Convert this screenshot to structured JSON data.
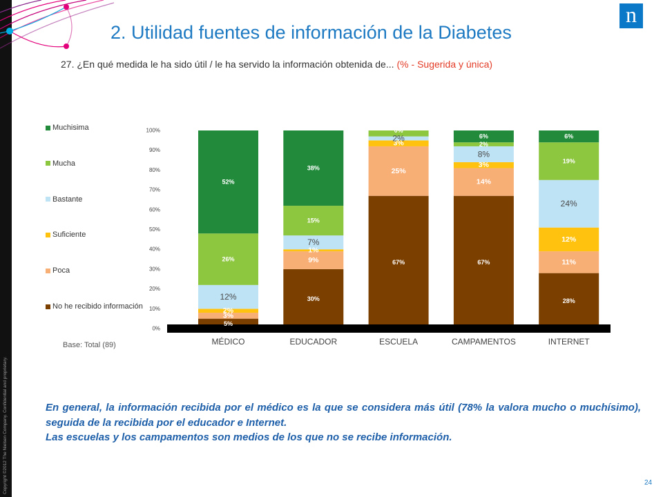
{
  "slide": {
    "title": "2. Utilidad fuentes de información de la Diabetes",
    "question": "27. ¿En qué medida le ha sido útil / le ha servido la información obtenida de...",
    "question_note": "(% - Sugerida y única)",
    "base": "Base: Total (89)",
    "conclusion": [
      "En general, la información recibida por el médico es la que se considera más útil (78% la valora mucho o muchísimo), seguida de la recibida por el educador e Internet.",
      "Las escuelas y los campamentos son medios de los que no se recibe información."
    ],
    "page_number": "24",
    "copyright": "Copyright ©2012 The Nielsen Company. Confidential and proprietary.",
    "logo_text": "n"
  },
  "colors": {
    "brand_blue": "#1C79C2",
    "logo_blue": "#0B78C8",
    "question_note": "#E33B26",
    "conclusion_text": "#1E5FA9"
  },
  "chart_data": {
    "type": "bar",
    "stacked": true,
    "categories": [
      "MÉDICO",
      "EDUCADOR",
      "ESCUELA",
      "CAMPAMENTOS",
      "INTERNET"
    ],
    "series": [
      {
        "name": "No he recibido información",
        "color": "#7B3F00",
        "values": [
          5,
          30,
          67,
          67,
          28
        ],
        "labels": [
          "5%",
          "30%",
          "67%",
          "67%",
          "28%"
        ]
      },
      {
        "name": "Poca",
        "color": "#F8AF76",
        "values": [
          3,
          9,
          25,
          14,
          11
        ],
        "labels": [
          "3%",
          "9%",
          "25%",
          "14%",
          "11%"
        ]
      },
      {
        "name": "Suficiente",
        "color": "#FFC20E",
        "values": [
          2,
          1,
          3,
          3,
          12
        ],
        "labels": [
          "2%",
          "1%",
          "3%",
          "3%",
          "12%"
        ]
      },
      {
        "name": "Bastante",
        "color": "#BEE3F5",
        "values": [
          12,
          7,
          2,
          8,
          24
        ],
        "labels": [
          "12%",
          "7%",
          "2%",
          "8%",
          "24%"
        ]
      },
      {
        "name": "Mucha",
        "color": "#8DC63F",
        "values": [
          26,
          15,
          3,
          2,
          19
        ],
        "labels": [
          "26%",
          "15%",
          "",
          "2%",
          "19%"
        ]
      },
      {
        "name": "Muchisima",
        "color": "#228B3B",
        "values": [
          52,
          38,
          0,
          6,
          6
        ],
        "labels": [
          "52%",
          "38%",
          "0%",
          "6%",
          "6%"
        ]
      }
    ],
    "yticks": [
      "0%",
      "10%",
      "20%",
      "30%",
      "40%",
      "50%",
      "60%",
      "70%",
      "80%",
      "90%",
      "100%"
    ],
    "ylim": [
      0,
      100
    ],
    "xlabel": "",
    "ylabel": "",
    "legend": "left",
    "grid": false
  }
}
